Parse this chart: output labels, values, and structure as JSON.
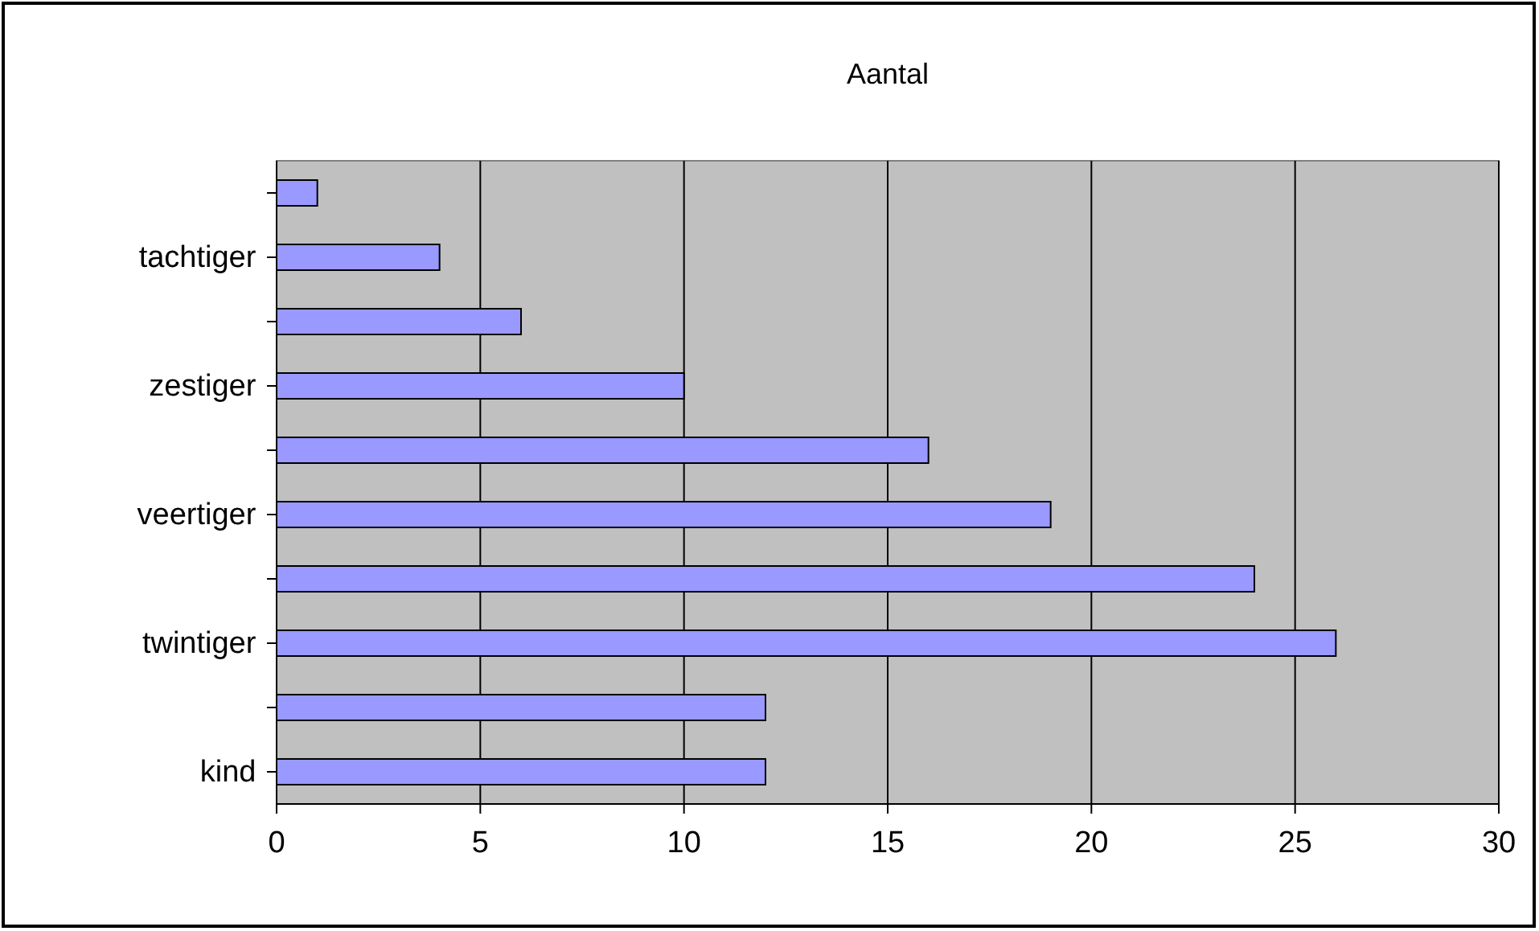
{
  "chart_data": {
    "type": "bar",
    "orientation": "horizontal",
    "title": "Aantal",
    "categories": [
      null,
      "tachtiger",
      null,
      "zestiger",
      null,
      "veertiger",
      null,
      "twintiger",
      null,
      "kind"
    ],
    "values": [
      1,
      4,
      6,
      10,
      16,
      19,
      24,
      26,
      12,
      12
    ],
    "color": "#9999ff",
    "xlim": [
      0,
      30
    ],
    "xticks": [
      0,
      5,
      10,
      15,
      20,
      25,
      30
    ],
    "grid": "x"
  }
}
